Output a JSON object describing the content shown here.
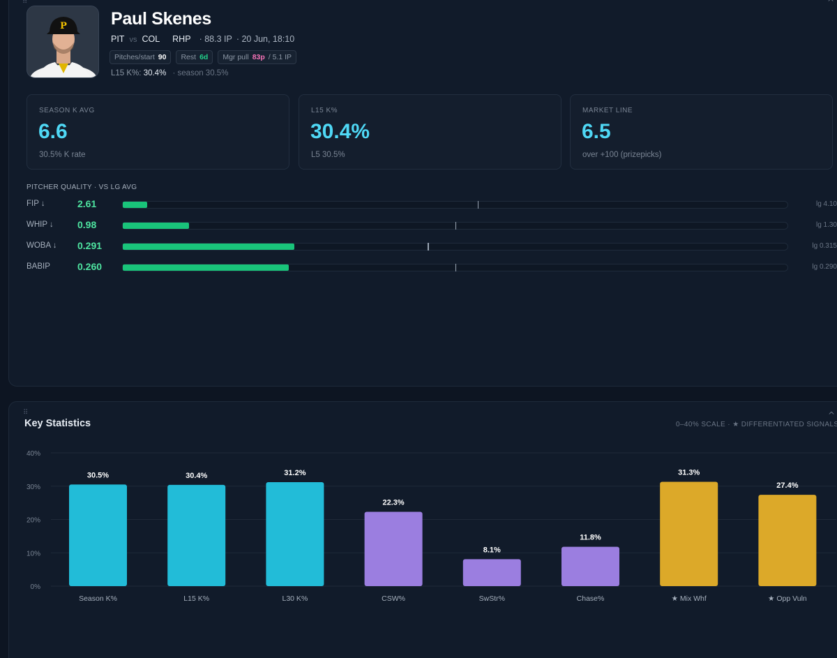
{
  "player": {
    "name": "Paul Skenes",
    "team": "PIT",
    "vs": "vs",
    "opponent": "COL",
    "hand": "RHP",
    "ip": "· 88.3 IP",
    "game_time": "· 20 Jun, 18:10"
  },
  "chips": {
    "pitches_label": "Pitches/start",
    "pitches_value": "90",
    "rest_label": "Rest",
    "rest_value": "6d",
    "pull_label": "Mgr pull",
    "pull_value": "83p",
    "pull_ip": "/ 5.1 IP"
  },
  "k_line": {
    "label": "L15 K%:",
    "value": "30.4%",
    "season": "· season 30.5%"
  },
  "cards": [
    {
      "label": "SEASON K AVG",
      "value": "6.6",
      "sub": "30.5% K rate"
    },
    {
      "label": "L15 K%",
      "value": "30.4%",
      "sub": "L5 30.5%"
    },
    {
      "label": "MARKET LINE",
      "value": "6.5",
      "sub": "over +100 (prizepicks)"
    }
  ],
  "quality": {
    "title": "PITCHER QUALITY · VS LG AVG",
    "rows": [
      {
        "name": "FIP ↓",
        "value": "2.61",
        "lg": "lg 4.10",
        "fill": 0.037,
        "lg_mark": 0.534
      },
      {
        "name": "WHIP ↓",
        "value": "0.98",
        "lg": "lg 1.30",
        "fill": 0.1,
        "lg_mark": 0.5
      },
      {
        "name": "WOBA ↓",
        "value": "0.291",
        "lg": "lg 0.315",
        "fill": 0.258,
        "lg_mark": 0.459
      },
      {
        "name": "BABIP",
        "value": "0.260",
        "lg": "lg 0.290",
        "fill": 0.25,
        "lg_mark": 0.5
      }
    ]
  },
  "stats": {
    "title": "Key Statistics",
    "note": "0–40% SCALE · ★ DIFFERENTIATED SIGNALS"
  },
  "chart_data": {
    "type": "bar",
    "categories": [
      "Season K%",
      "L15 K%",
      "L30 K%",
      "CSW%",
      "SwStr%",
      "Chase%",
      "★ Mix Whf",
      "★ Opp Vuln"
    ],
    "values": [
      30.5,
      30.4,
      31.2,
      22.3,
      8.1,
      11.8,
      31.3,
      27.4
    ],
    "value_labels": [
      "30.5%",
      "30.4%",
      "31.2%",
      "22.3%",
      "8.1%",
      "11.8%",
      "31.3%",
      "27.4%"
    ],
    "colors": [
      "#22bcd8",
      "#22bcd8",
      "#22bcd8",
      "#9b7ee0",
      "#9b7ee0",
      "#9b7ee0",
      "#dca929",
      "#dca929"
    ],
    "yticks": [
      0,
      10,
      20,
      30,
      40
    ],
    "ytick_labels": [
      "0%",
      "10%",
      "20%",
      "30%",
      "40%"
    ],
    "ylim": [
      0,
      40
    ],
    "grid": true
  }
}
